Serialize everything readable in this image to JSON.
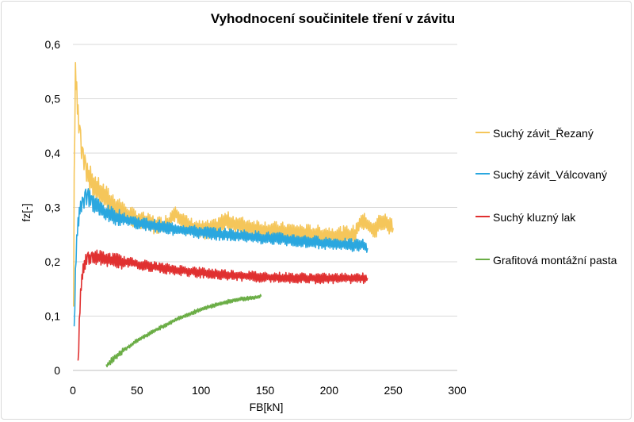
{
  "chart_data": {
    "type": "line",
    "title": "Vyhodnocení součinitele tření v závitu",
    "xlabel": "FB[kN]",
    "ylabel": "fz[-]",
    "xlim": [
      0,
      300
    ],
    "ylim": [
      0,
      0.6
    ],
    "xticks": [
      0,
      50,
      100,
      150,
      200,
      250,
      300
    ],
    "xtick_labels": [
      "0",
      "50",
      "100",
      "150",
      "200",
      "250",
      "300"
    ],
    "yticks": [
      0,
      0.1,
      0.2,
      0.3,
      0.4,
      0.5,
      0.6
    ],
    "ytick_labels": [
      "0",
      "0,1",
      "0,2",
      "0,3",
      "0,4",
      "0,5",
      "0,6"
    ],
    "grid": "horizontal",
    "legend_position": "right",
    "series": [
      {
        "name": "Suchý závit_Řezaný",
        "color": "#f5c65a",
        "noise": 0.018,
        "x": [
          0.5,
          1,
          2,
          3,
          4,
          6,
          8,
          10,
          15,
          20,
          25,
          30,
          40,
          50,
          60,
          70,
          75,
          80,
          85,
          90,
          100,
          110,
          115,
          120,
          130,
          140,
          150,
          160,
          170,
          180,
          190,
          200,
          210,
          220,
          225,
          230,
          235,
          240,
          245,
          250
        ],
        "y": [
          0.1,
          0.35,
          0.55,
          0.52,
          0.47,
          0.42,
          0.39,
          0.37,
          0.345,
          0.33,
          0.318,
          0.305,
          0.29,
          0.278,
          0.27,
          0.265,
          0.273,
          0.292,
          0.275,
          0.265,
          0.258,
          0.26,
          0.27,
          0.275,
          0.266,
          0.262,
          0.258,
          0.256,
          0.254,
          0.252,
          0.25,
          0.248,
          0.248,
          0.25,
          0.275,
          0.268,
          0.255,
          0.275,
          0.27,
          0.262
        ]
      },
      {
        "name": "Suchý závit_Válcovaný",
        "color": "#2aa7df",
        "noise": 0.012,
        "x": [
          1,
          2,
          3,
          4,
          5,
          6,
          8,
          10,
          12,
          15,
          20,
          25,
          30,
          40,
          50,
          60,
          70,
          80,
          90,
          100,
          120,
          140,
          160,
          180,
          200,
          220,
          225,
          230
        ],
        "y": [
          0.07,
          0.18,
          0.24,
          0.27,
          0.29,
          0.3,
          0.31,
          0.32,
          0.318,
          0.31,
          0.3,
          0.29,
          0.285,
          0.278,
          0.272,
          0.268,
          0.264,
          0.26,
          0.257,
          0.254,
          0.25,
          0.246,
          0.242,
          0.238,
          0.234,
          0.23,
          0.232,
          0.225
        ]
      },
      {
        "name": "Suchý kluzný lak",
        "color": "#e03030",
        "noise": 0.01,
        "x": [
          4,
          5,
          6,
          7,
          8,
          9,
          10,
          12,
          15,
          20,
          25,
          30,
          40,
          50,
          60,
          70,
          80,
          100,
          120,
          140,
          160,
          180,
          200,
          220,
          230
        ],
        "y": [
          0.005,
          0.09,
          0.14,
          0.17,
          0.185,
          0.195,
          0.2,
          0.205,
          0.21,
          0.208,
          0.205,
          0.203,
          0.2,
          0.196,
          0.192,
          0.188,
          0.185,
          0.18,
          0.176,
          0.173,
          0.171,
          0.17,
          0.169,
          0.17,
          0.17
        ]
      },
      {
        "name": "Grafitová montážní pasta",
        "color": "#6aad45",
        "noise": 0.004,
        "x": [
          26,
          30,
          40,
          50,
          60,
          70,
          80,
          90,
          100,
          110,
          120,
          130,
          140,
          147
        ],
        "y": [
          0.008,
          0.018,
          0.038,
          0.055,
          0.068,
          0.081,
          0.093,
          0.103,
          0.112,
          0.12,
          0.126,
          0.131,
          0.134,
          0.136
        ]
      }
    ]
  }
}
